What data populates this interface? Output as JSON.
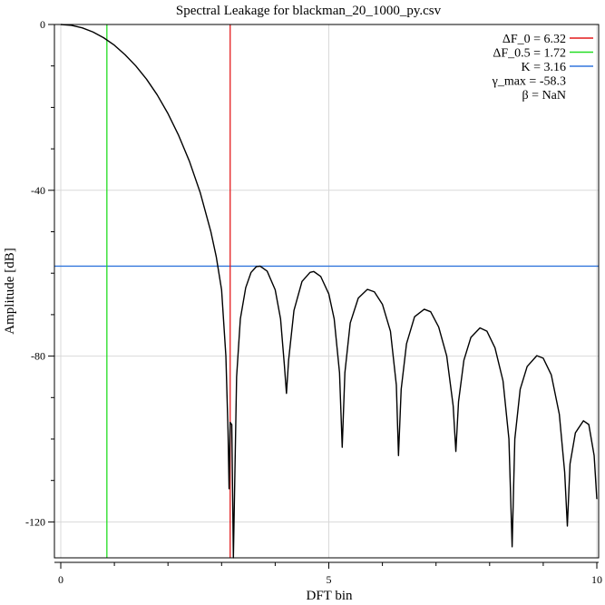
{
  "chart_data": {
    "type": "line",
    "title": "Spectral Leakage for blackman_20_1000_py.csv",
    "xlabel": "DFT bin",
    "ylabel": "Amplitude [dB]",
    "xlim": [
      0,
      10
    ],
    "ylim": [
      -128,
      0
    ],
    "xticks": [
      0,
      5,
      10
    ],
    "xtick_labels": [
      "0",
      "5",
      "10"
    ],
    "yticks": [
      0,
      -40,
      -80,
      -120
    ],
    "ytick_labels": [
      "0",
      "-40",
      "-80",
      "-120"
    ],
    "grid": true,
    "legend_position": "top-right",
    "legend": [
      {
        "label": "ΔF_0 = 6.32",
        "color": "#e41a1c"
      },
      {
        "label": "ΔF_0.5 = 1.72",
        "color": "#22dd22"
      },
      {
        "label": "K = 3.16",
        "color": "#3377dd"
      },
      {
        "label": "γ_max = -58.3",
        "color": ""
      },
      {
        "label": "β = NaN",
        "color": ""
      }
    ],
    "markers": {
      "half_bandwidth_line": {
        "x": 0.86,
        "color": "#22dd22"
      },
      "null_line": {
        "x": 3.16,
        "color": "#e41a1c"
      },
      "max_sidelobe_level": {
        "y": -58.3,
        "color": "#3377dd"
      }
    },
    "series": [
      {
        "color": "#000000",
        "points": [
          [
            0.0,
            0.0
          ],
          [
            0.2,
            -0.2
          ],
          [
            0.4,
            -0.8
          ],
          [
            0.6,
            -1.8
          ],
          [
            0.8,
            -3.2
          ],
          [
            1.0,
            -5.0
          ],
          [
            1.2,
            -7.3
          ],
          [
            1.4,
            -10.0
          ],
          [
            1.6,
            -13.2
          ],
          [
            1.8,
            -17.0
          ],
          [
            2.0,
            -21.5
          ],
          [
            2.2,
            -26.8
          ],
          [
            2.4,
            -33.0
          ],
          [
            2.6,
            -40.5
          ],
          [
            2.8,
            -50.0
          ],
          [
            2.9,
            -56.0
          ],
          [
            3.0,
            -64.0
          ],
          [
            3.08,
            -80.0
          ],
          [
            3.12,
            -98.0
          ],
          [
            3.14,
            -112.0
          ],
          [
            3.16,
            -96.0
          ],
          [
            3.19,
            -96.5
          ],
          [
            3.22,
            -129.0
          ],
          [
            3.28,
            -85.0
          ],
          [
            3.35,
            -71.0
          ],
          [
            3.45,
            -63.5
          ],
          [
            3.55,
            -59.8
          ],
          [
            3.65,
            -58.4
          ],
          [
            3.72,
            -58.3
          ],
          [
            3.85,
            -59.5
          ],
          [
            4.0,
            -64.0
          ],
          [
            4.1,
            -71.0
          ],
          [
            4.17,
            -82.0
          ],
          [
            4.21,
            -89.0
          ],
          [
            4.25,
            -81.0
          ],
          [
            4.35,
            -69.0
          ],
          [
            4.5,
            -62.0
          ],
          [
            4.65,
            -59.8
          ],
          [
            4.72,
            -59.6
          ],
          [
            4.85,
            -60.8
          ],
          [
            5.0,
            -65.0
          ],
          [
            5.1,
            -71.0
          ],
          [
            5.2,
            -84.0
          ],
          [
            5.25,
            -102.0
          ],
          [
            5.3,
            -84.0
          ],
          [
            5.4,
            -72.0
          ],
          [
            5.55,
            -66.0
          ],
          [
            5.72,
            -63.9
          ],
          [
            5.85,
            -64.5
          ],
          [
            6.0,
            -67.5
          ],
          [
            6.15,
            -74.0
          ],
          [
            6.26,
            -87.0
          ],
          [
            6.3,
            -104.0
          ],
          [
            6.35,
            -88.0
          ],
          [
            6.45,
            -77.0
          ],
          [
            6.6,
            -70.5
          ],
          [
            6.78,
            -68.7
          ],
          [
            6.9,
            -69.3
          ],
          [
            7.05,
            -73.0
          ],
          [
            7.2,
            -80.0
          ],
          [
            7.32,
            -92.0
          ],
          [
            7.37,
            -103.0
          ],
          [
            7.42,
            -91.0
          ],
          [
            7.52,
            -81.0
          ],
          [
            7.65,
            -75.5
          ],
          [
            7.82,
            -73.2
          ],
          [
            7.95,
            -74.0
          ],
          [
            8.1,
            -78.0
          ],
          [
            8.25,
            -86.0
          ],
          [
            8.36,
            -100.0
          ],
          [
            8.42,
            -126.0
          ],
          [
            8.47,
            -100.0
          ],
          [
            8.57,
            -88.0
          ],
          [
            8.7,
            -82.5
          ],
          [
            8.88,
            -79.9
          ],
          [
            9.0,
            -80.5
          ],
          [
            9.15,
            -84.5
          ],
          [
            9.3,
            -94.0
          ],
          [
            9.4,
            -108.0
          ],
          [
            9.45,
            -121.0
          ],
          [
            9.5,
            -106.0
          ],
          [
            9.6,
            -98.5
          ],
          [
            9.75,
            -95.6
          ],
          [
            9.85,
            -96.5
          ],
          [
            9.95,
            -104.0
          ],
          [
            10.0,
            -114.5
          ]
        ]
      }
    ]
  }
}
